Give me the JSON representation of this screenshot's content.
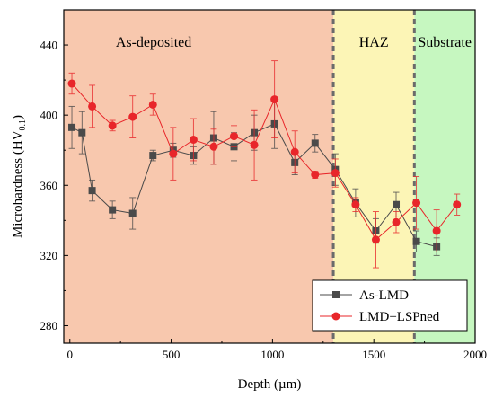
{
  "chart_data": {
    "type": "line",
    "xlabel": "Depth (µm)",
    "ylabel": "Microhardness (HV",
    "ylabel_sub": "0.1",
    "ylabel_close": ")",
    "xlim": [
      -30,
      2000
    ],
    "ylim": [
      270,
      460
    ],
    "xticks": [
      0,
      500,
      1000,
      1500,
      2000
    ],
    "yticks": [
      280,
      320,
      360,
      400,
      440
    ],
    "grid": false,
    "legend_position": "lower-right",
    "regions": [
      {
        "name": "As-deposited",
        "x0": -30,
        "x1": 1300,
        "color": "#f8c8ae"
      },
      {
        "name": "HAZ",
        "x0": 1300,
        "x1": 1700,
        "color": "#fcf5b6"
      },
      {
        "name": "Substrate",
        "x0": 1700,
        "x1": 2000,
        "color": "#c6f7c0"
      }
    ],
    "boundaries": [
      1300,
      1700
    ],
    "series": [
      {
        "name": "As-LMD",
        "color": "#4a4a4a",
        "marker": "square",
        "x": [
          10,
          60,
          110,
          210,
          310,
          410,
          510,
          610,
          710,
          810,
          910,
          1010,
          1110,
          1210,
          1310,
          1410,
          1510,
          1610,
          1710,
          1810
        ],
        "y": [
          393,
          390,
          357,
          346,
          344,
          377,
          380,
          377,
          387,
          382,
          390,
          395,
          373,
          384,
          369,
          350,
          334,
          349,
          328,
          325
        ],
        "err": [
          12,
          12,
          6,
          5,
          9,
          3,
          4,
          5,
          15,
          8,
          10,
          14,
          7,
          5,
          9,
          8,
          7,
          7,
          6,
          5
        ]
      },
      {
        "name": "LMD+LSPned",
        "color": "#e8262a",
        "marker": "circle",
        "x": [
          10,
          110,
          210,
          310,
          410,
          510,
          610,
          710,
          810,
          910,
          1010,
          1110,
          1210,
          1310,
          1410,
          1510,
          1610,
          1710,
          1810,
          1910
        ],
        "y": [
          418,
          405,
          394,
          399,
          406,
          378,
          386,
          382,
          388,
          383,
          409,
          379,
          366,
          367,
          349,
          329,
          339,
          350,
          334,
          349
        ],
        "err": [
          6,
          12,
          3,
          12,
          6,
          15,
          12,
          10,
          6,
          20,
          22,
          12,
          2,
          8,
          4,
          16,
          6,
          15,
          12,
          6
        ]
      }
    ]
  }
}
